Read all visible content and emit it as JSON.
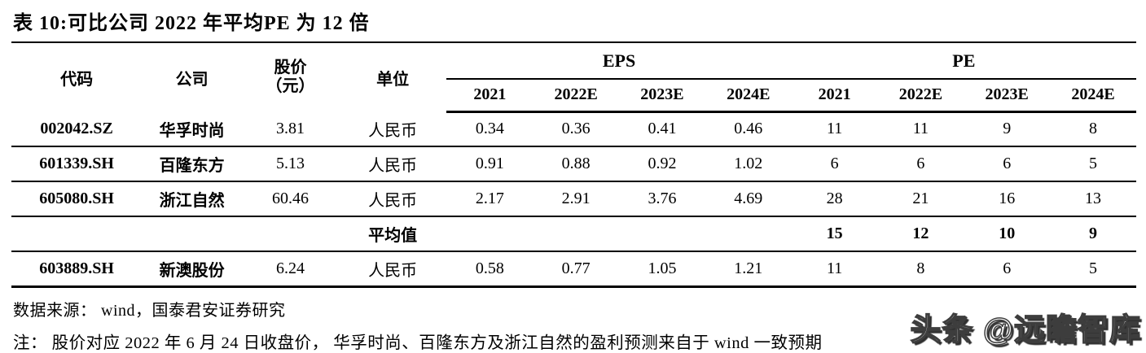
{
  "title": "表 10:可比公司 2022 年平均PE 为 12 倍",
  "table": {
    "headers": {
      "code": "代码",
      "company": "公司",
      "price_line1": "股价",
      "price_line2": "（元）",
      "unit": "单位",
      "eps_group": "EPS",
      "pe_group": "PE",
      "eps_years": [
        "2021",
        "2022E",
        "2023E",
        "2024E"
      ],
      "pe_years": [
        "2021",
        "2022E",
        "2023E",
        "2024E"
      ]
    },
    "rows": [
      {
        "code": "002042.SZ",
        "company": "华孚时尚",
        "price": "3.81",
        "unit": "人民币",
        "eps": [
          "0.34",
          "0.36",
          "0.41",
          "0.46"
        ],
        "pe": [
          "11",
          "11",
          "9",
          "8"
        ]
      },
      {
        "code": "601339.SH",
        "company": "百隆东方",
        "price": "5.13",
        "unit": "人民币",
        "eps": [
          "0.91",
          "0.88",
          "0.92",
          "1.02"
        ],
        "pe": [
          "6",
          "6",
          "6",
          "5"
        ]
      },
      {
        "code": "605080.SH",
        "company": "浙江自然",
        "price": "60.46",
        "unit": "人民币",
        "eps": [
          "2.17",
          "2.91",
          "3.76",
          "4.69"
        ],
        "pe": [
          "28",
          "21",
          "16",
          "13"
        ]
      },
      {
        "code": "",
        "company": "",
        "price": "",
        "unit": "平均值",
        "eps": [
          "",
          "",
          "",
          ""
        ],
        "pe": [
          "15",
          "12",
          "10",
          "9"
        ]
      },
      {
        "code": "603889.SH",
        "company": "新澳股份",
        "price": "6.24",
        "unit": "人民币",
        "eps": [
          "0.58",
          "0.77",
          "1.05",
          "1.21"
        ],
        "pe": [
          "11",
          "8",
          "6",
          "5"
        ]
      }
    ]
  },
  "footer": {
    "source": "数据来源： wind，国泰君安证券研究",
    "note": "注： 股价对应 2022 年 6 月 24 日收盘价， 华孚时尚、百隆东方及浙江自然的盈利预测来自于 wind 一致预期"
  },
  "watermark": "头条 @远瞻智库",
  "colors": {
    "text": "#000000",
    "background": "#ffffff",
    "watermark_fill": "#ffffff",
    "watermark_outline": "#3d3d3d"
  }
}
